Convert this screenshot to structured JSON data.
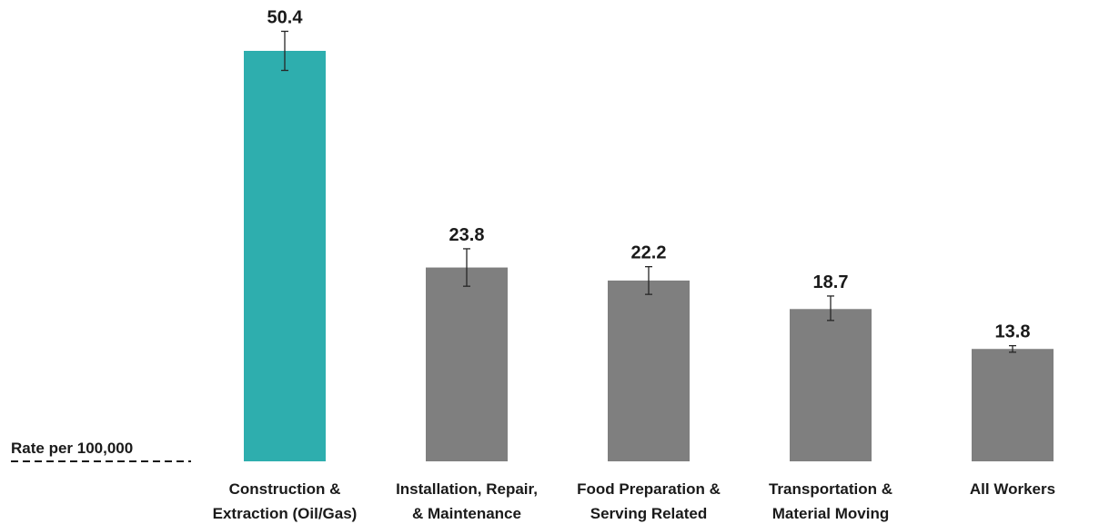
{
  "chart_data": {
    "type": "bar",
    "title": "",
    "xlabel": "",
    "ylabel": "Rate per 100,000",
    "categories": [
      [
        "Construction &",
        "Extraction (Oil/Gas)"
      ],
      [
        "Installation, Repair,",
        "& Maintenance"
      ],
      [
        "Food Preparation &",
        "Serving Related"
      ],
      [
        "Transportation &",
        "Material Moving"
      ],
      [
        "All Workers"
      ]
    ],
    "values": [
      50.4,
      23.8,
      22.2,
      18.7,
      13.8
    ],
    "value_labels": [
      "50.4",
      "23.8",
      "22.2",
      "18.7",
      "13.8"
    ],
    "error_bars": [
      [
        48.0,
        52.8
      ],
      [
        21.5,
        26.1
      ],
      [
        20.5,
        23.9
      ],
      [
        17.3,
        20.3
      ],
      [
        13.4,
        14.2
      ]
    ],
    "ylim": [
      0,
      55
    ],
    "grid": false,
    "legend": "none",
    "colors": [
      "#2eaeae",
      "#7f7f7f",
      "#7f7f7f",
      "#7f7f7f",
      "#7f7f7f"
    ],
    "error_bar_color": "#262626",
    "baseline_style": "dashed"
  }
}
